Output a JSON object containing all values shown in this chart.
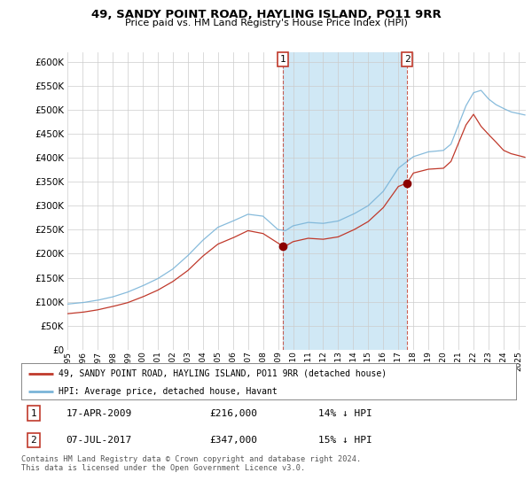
{
  "title": "49, SANDY POINT ROAD, HAYLING ISLAND, PO11 9RR",
  "subtitle": "Price paid vs. HM Land Registry's House Price Index (HPI)",
  "legend_line1": "49, SANDY POINT ROAD, HAYLING ISLAND, PO11 9RR (detached house)",
  "legend_line2": "HPI: Average price, detached house, Havant",
  "transaction1_label": "1",
  "transaction1_date": "17-APR-2009",
  "transaction1_price": "£216,000",
  "transaction1_diff": "14% ↓ HPI",
  "transaction2_label": "2",
  "transaction2_date": "07-JUL-2017",
  "transaction2_price": "£347,000",
  "transaction2_diff": "15% ↓ HPI",
  "footer": "Contains HM Land Registry data © Crown copyright and database right 2024.\nThis data is licensed under the Open Government Licence v3.0.",
  "hpi_color": "#7ab4d8",
  "price_color": "#c0392b",
  "marker_color": "#c0392b",
  "shade_color": "#d0e8f5",
  "background_color": "#ffffff",
  "ylim": [
    0,
    620000
  ],
  "yticks": [
    0,
    50000,
    100000,
    150000,
    200000,
    250000,
    300000,
    350000,
    400000,
    450000,
    500000,
    550000,
    600000
  ],
  "transaction1_year": 2009.3,
  "transaction1_value": 216000,
  "transaction2_year": 2017.58,
  "transaction2_value": 347000,
  "xmin": 1995,
  "xmax": 2025.5
}
